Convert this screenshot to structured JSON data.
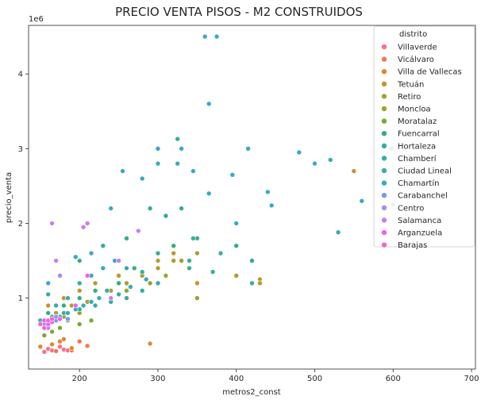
{
  "chart_data": {
    "type": "scatter",
    "title": "PRECIO VENTA PISOS - M2 CONSTRUIDOS",
    "xlabel": "metros2_const",
    "ylabel": "precio_venta",
    "y_multiplier_label": "1e6",
    "xlim": [
      135,
      705
    ],
    "ylim": [
      50000,
      4650000
    ],
    "x_ticks": [
      200,
      300,
      400,
      500,
      600,
      700
    ],
    "y_ticks": [
      1000000,
      2000000,
      3000000,
      4000000
    ],
    "y_tick_labels": [
      "1",
      "2",
      "3",
      "4"
    ],
    "grid": false,
    "legend": {
      "title": "distrito",
      "placement": "top-right"
    },
    "series": [
      {
        "name": "Villaverde",
        "color": "#f77189",
        "points": [
          [
            155,
            280000
          ],
          [
            160,
            320000
          ],
          [
            165,
            300000
          ],
          [
            175,
            350000
          ],
          [
            180,
            310000
          ],
          [
            185,
            300000
          ]
        ]
      },
      {
        "name": "Vicálvaro",
        "color": "#f7754f",
        "points": [
          [
            170,
            290000
          ],
          [
            190,
            300000
          ],
          [
            200,
            420000
          ],
          [
            210,
            360000
          ]
        ]
      },
      {
        "name": "Villa de Vallecas",
        "color": "#dc8932",
        "points": [
          [
            150,
            350000
          ],
          [
            165,
            380000
          ],
          [
            175,
            420000
          ],
          [
            180,
            450000
          ],
          [
            190,
            330000
          ],
          [
            290,
            390000
          ]
        ]
      },
      {
        "name": "Tetuán",
        "color": "#c39532",
        "points": [
          [
            160,
            900000
          ],
          [
            180,
            1000000
          ],
          [
            200,
            1100000
          ],
          [
            220,
            1200000
          ],
          [
            250,
            1300000
          ],
          [
            270,
            1400000
          ],
          [
            300,
            1500000
          ],
          [
            320,
            1600000
          ],
          [
            350,
            1200000
          ],
          [
            430,
            1250000
          ],
          [
            550,
            2700000
          ]
        ]
      },
      {
        "name": "Retiro",
        "color": "#ae9d31",
        "points": [
          [
            170,
            800000
          ],
          [
            190,
            900000
          ],
          [
            210,
            950000
          ],
          [
            240,
            1100000
          ],
          [
            260,
            1200000
          ],
          [
            280,
            1300000
          ],
          [
            300,
            1400000
          ],
          [
            320,
            1500000
          ],
          [
            350,
            1600000
          ],
          [
            400,
            1300000
          ],
          [
            430,
            1200000
          ],
          [
            600,
            2250000
          ]
        ]
      },
      {
        "name": "Moncloa",
        "color": "#97a431",
        "points": [
          [
            160,
            700000
          ],
          [
            180,
            750000
          ],
          [
            200,
            800000
          ],
          [
            220,
            900000
          ],
          [
            240,
            1000000
          ],
          [
            260,
            1100000
          ],
          [
            290,
            1200000
          ],
          [
            310,
            1300000
          ],
          [
            330,
            1500000
          ],
          [
            350,
            1000000
          ]
        ]
      },
      {
        "name": "Moratalaz",
        "color": "#77ab31",
        "points": [
          [
            155,
            500000
          ],
          [
            165,
            550000
          ],
          [
            175,
            600000
          ],
          [
            185,
            700000
          ],
          [
            200,
            650000
          ],
          [
            215,
            700000
          ]
        ]
      },
      {
        "name": "Fuencarral",
        "color": "#33b07a",
        "points": [
          [
            160,
            800000
          ],
          [
            180,
            900000
          ],
          [
            200,
            1000000
          ],
          [
            220,
            1100000
          ],
          [
            250,
            1200000
          ],
          [
            270,
            1400000
          ],
          [
            300,
            1600000
          ],
          [
            320,
            1700000
          ],
          [
            350,
            1800000
          ],
          [
            400,
            1700000
          ],
          [
            420,
            1500000
          ],
          [
            200,
            1500000
          ],
          [
            230,
            1700000
          ],
          [
            260,
            1800000
          ],
          [
            290,
            2200000
          ],
          [
            310,
            2100000
          ],
          [
            330,
            2200000
          ]
        ]
      },
      {
        "name": "Hortaleza",
        "color": "#35ad9c",
        "points": [
          [
            150,
            700000
          ],
          [
            165,
            750000
          ],
          [
            180,
            800000
          ],
          [
            200,
            850000
          ],
          [
            220,
            900000
          ],
          [
            240,
            950000
          ],
          [
            260,
            1000000
          ],
          [
            280,
            1100000
          ],
          [
            300,
            1200000
          ],
          [
            325,
            3130000
          ],
          [
            340,
            1400000
          ],
          [
            370,
            1350000
          ],
          [
            420,
            1200000
          ]
        ]
      },
      {
        "name": "Chamberí",
        "color": "#36ada4",
        "points": [
          [
            155,
            600000
          ],
          [
            160,
            1050000
          ],
          [
            170,
            900000
          ],
          [
            185,
            1000000
          ],
          [
            200,
            1200000
          ],
          [
            215,
            1300000
          ],
          [
            230,
            1400000
          ],
          [
            245,
            1500000
          ],
          [
            260,
            1400000
          ],
          [
            280,
            1350000
          ],
          [
            300,
            1200000
          ],
          [
            340,
            1500000
          ],
          [
            380,
            1600000
          ]
        ]
      },
      {
        "name": "Ciudad Lineal",
        "color": "#37abb4",
        "points": [
          [
            155,
            650000
          ],
          [
            165,
            700000
          ],
          [
            175,
            750000
          ],
          [
            185,
            800000
          ],
          [
            195,
            850000
          ],
          [
            205,
            900000
          ],
          [
            215,
            950000
          ],
          [
            225,
            1000000
          ],
          [
            235,
            1100000
          ],
          [
            250,
            1050000
          ],
          [
            265,
            1150000
          ],
          [
            285,
            1250000
          ],
          [
            345,
            1800000
          ],
          [
            530,
            1880000
          ]
        ]
      },
      {
        "name": "Chamartín",
        "color": "#38a9c5",
        "points": [
          [
            160,
            1200000
          ],
          [
            175,
            1300000
          ],
          [
            195,
            1550000
          ],
          [
            215,
            1600000
          ],
          [
            240,
            2200000
          ],
          [
            255,
            2700000
          ],
          [
            280,
            2600000
          ],
          [
            300,
            2800000
          ],
          [
            300,
            3000000
          ],
          [
            325,
            2800000
          ],
          [
            330,
            3000000
          ],
          [
            345,
            2700000
          ],
          [
            365,
            2400000
          ],
          [
            365,
            3600000
          ],
          [
            360,
            4500000
          ],
          [
            375,
            4500000
          ],
          [
            395,
            2650000
          ],
          [
            400,
            2000000
          ],
          [
            415,
            3000000
          ],
          [
            440,
            2420000
          ],
          [
            445,
            2240000
          ],
          [
            480,
            2950000
          ],
          [
            500,
            2800000
          ],
          [
            520,
            2850000
          ],
          [
            560,
            2300000
          ],
          [
            598,
            3000000
          ]
        ]
      },
      {
        "name": "Carabanchel",
        "color": "#6e9bf4",
        "points": [
          [
            155,
            650000
          ],
          [
            170,
            700000
          ],
          [
            185,
            720000
          ]
        ]
      },
      {
        "name": "Centro",
        "color": "#a48cf4",
        "points": [
          [
            160,
            700000
          ],
          [
            170,
            750000
          ],
          [
            175,
            1300000
          ]
        ]
      },
      {
        "name": "Salamanca",
        "color": "#cc7af4",
        "points": [
          [
            160,
            600000
          ],
          [
            165,
            2000000
          ],
          [
            170,
            1500000
          ],
          [
            205,
            1950000
          ],
          [
            210,
            2000000
          ],
          [
            240,
            1000000
          ],
          [
            250,
            1500000
          ],
          [
            275,
            1900000
          ]
        ]
      },
      {
        "name": "Arganzuela",
        "color": "#f45cf2",
        "points": [
          [
            155,
            700000
          ],
          [
            160,
            650000
          ],
          [
            165,
            680000
          ],
          [
            175,
            720000
          ],
          [
            195,
            900000
          ],
          [
            210,
            1300000
          ]
        ]
      },
      {
        "name": "Barajas",
        "color": "#f565cc",
        "points": [
          [
            150,
            650000
          ],
          [
            155,
            600000
          ],
          [
            160,
            700000
          ],
          [
            165,
            720000
          ]
        ]
      }
    ]
  }
}
